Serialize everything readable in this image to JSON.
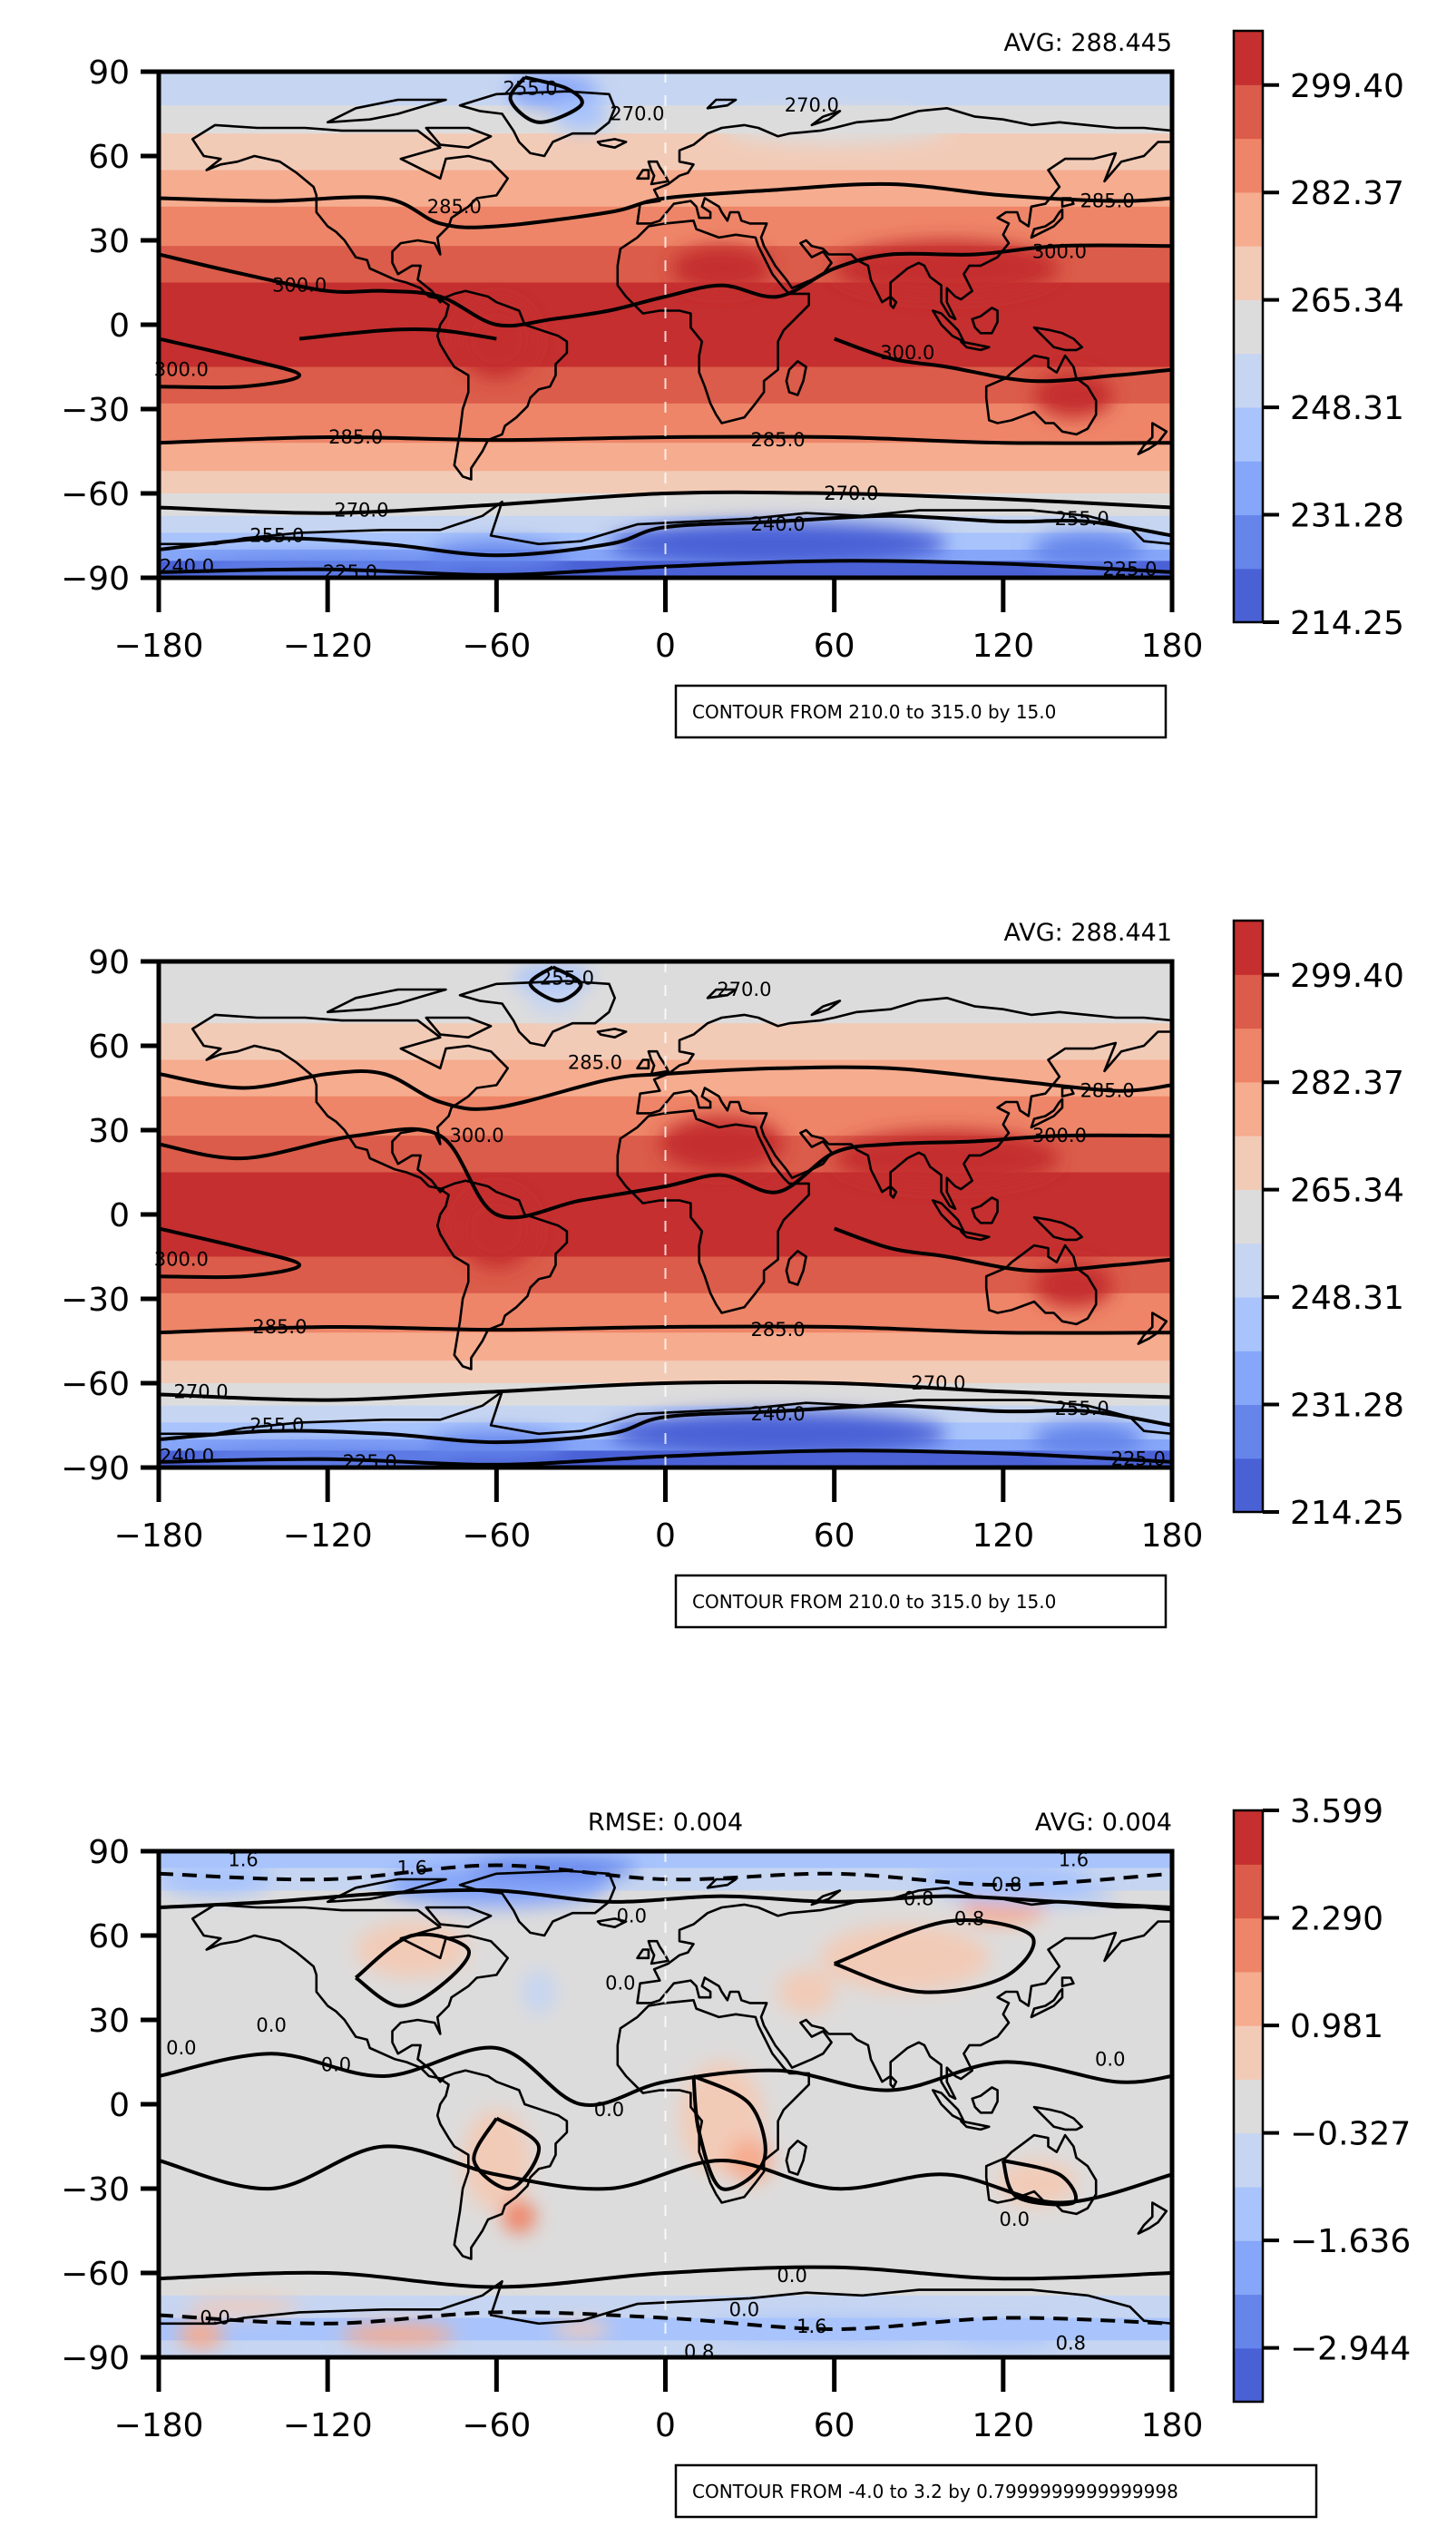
{
  "chart_data": [
    {
      "type": "heatmap",
      "subtype": "filled-contour map",
      "colormap": "coolwarm",
      "title_right": "AVG: 288.445",
      "x_ticks": [
        "−180",
        "−120",
        "−60",
        "0",
        "60",
        "120",
        "180"
      ],
      "y_ticks": [
        "90",
        "60",
        "30",
        "0",
        "−30",
        "−60",
        "−90"
      ],
      "xlim": [
        -180,
        180
      ],
      "ylim": [
        -90,
        90
      ],
      "colorbar": {
        "ticks": [
          "214.25",
          "231.28",
          "248.31",
          "265.34",
          "282.37",
          "299.40"
        ],
        "range": [
          214.25,
          308.0
        ],
        "levels": 11
      },
      "contour_note": "CONTOUR FROM 210.0 to 315.0 by 15.0",
      "contour_labels": [
        {
          "text": "255.0",
          "lon": -48,
          "lat": 84
        },
        {
          "text": "270.0",
          "lon": -10,
          "lat": 75
        },
        {
          "text": "270.0",
          "lon": 52,
          "lat": 78
        },
        {
          "text": "285.0",
          "lon": -75,
          "lat": 42
        },
        {
          "text": "285.0",
          "lon": 157,
          "lat": 44
        },
        {
          "text": "300.0",
          "lon": -130,
          "lat": 14
        },
        {
          "text": "300.0",
          "lon": 140,
          "lat": 26
        },
        {
          "text": "300.0",
          "lon": -172,
          "lat": -16
        },
        {
          "text": "300.0",
          "lon": 86,
          "lat": -10
        },
        {
          "text": "285.0",
          "lon": -110,
          "lat": -40
        },
        {
          "text": "285.0",
          "lon": 40,
          "lat": -41
        },
        {
          "text": "270.0",
          "lon": -108,
          "lat": -66
        },
        {
          "text": "270.0",
          "lon": 66,
          "lat": -60
        },
        {
          "text": "255.0",
          "lon": -138,
          "lat": -75
        },
        {
          "text": "255.0",
          "lon": 148,
          "lat": -69
        },
        {
          "text": "240.0",
          "lon": 40,
          "lat": -71
        },
        {
          "text": "240.0",
          "lon": -170,
          "lat": -86
        },
        {
          "text": "225.0",
          "lon": -112,
          "lat": -88
        },
        {
          "text": "225.0",
          "lon": 165,
          "lat": -87
        }
      ]
    },
    {
      "type": "heatmap",
      "subtype": "filled-contour map",
      "colormap": "coolwarm",
      "title_right": "AVG: 288.441",
      "x_ticks": [
        "−180",
        "−120",
        "−60",
        "0",
        "60",
        "120",
        "180"
      ],
      "y_ticks": [
        "90",
        "60",
        "30",
        "0",
        "−30",
        "−60",
        "−90"
      ],
      "xlim": [
        -180,
        180
      ],
      "ylim": [
        -90,
        90
      ],
      "colorbar": {
        "ticks": [
          "214.25",
          "231.28",
          "248.31",
          "265.34",
          "282.37",
          "299.40"
        ],
        "range": [
          214.25,
          308.0
        ],
        "levels": 11
      },
      "contour_note": "CONTOUR FROM 210.0 to 315.0 by 15.0",
      "contour_labels": [
        {
          "text": "255.0",
          "lon": -35,
          "lat": 84
        },
        {
          "text": "270.0",
          "lon": 28,
          "lat": 80
        },
        {
          "text": "285.0",
          "lon": -25,
          "lat": 54
        },
        {
          "text": "285.0",
          "lon": 157,
          "lat": 44
        },
        {
          "text": "300.0",
          "lon": -67,
          "lat": 28
        },
        {
          "text": "300.0",
          "lon": 140,
          "lat": 28
        },
        {
          "text": "300.0",
          "lon": -172,
          "lat": -16
        },
        {
          "text": "285.0",
          "lon": -137,
          "lat": -40
        },
        {
          "text": "285.0",
          "lon": 40,
          "lat": -41
        },
        {
          "text": "270.0",
          "lon": -165,
          "lat": -63
        },
        {
          "text": "270.0",
          "lon": 97,
          "lat": -60
        },
        {
          "text": "255.0",
          "lon": -138,
          "lat": -75
        },
        {
          "text": "255.0",
          "lon": 148,
          "lat": -69
        },
        {
          "text": "240.0",
          "lon": 40,
          "lat": -71
        },
        {
          "text": "240.0",
          "lon": -170,
          "lat": -86
        },
        {
          "text": "225.0",
          "lon": -105,
          "lat": -88
        },
        {
          "text": "225.0",
          "lon": 168,
          "lat": -87
        }
      ]
    },
    {
      "type": "heatmap",
      "subtype": "filled-contour map",
      "colormap": "coolwarm",
      "title_center": "RMSE: 0.004",
      "title_right": "AVG: 0.004",
      "x_ticks": [
        "−180",
        "−120",
        "−60",
        "0",
        "60",
        "120",
        "180"
      ],
      "y_ticks": [
        "90",
        "60",
        "30",
        "0",
        "−30",
        "−60",
        "−90"
      ],
      "xlim": [
        -180,
        180
      ],
      "ylim": [
        -90,
        90
      ],
      "colorbar": {
        "ticks": [
          "3.599",
          "2.290",
          "0.981",
          "−0.327",
          "−1.636",
          "−2.944"
        ],
        "range": [
          -3.6,
          3.599
        ],
        "levels": 11
      },
      "contour_note": "CONTOUR FROM -4.0 to 3.2 by 0.7999999999999998",
      "contour_labels": [
        {
          "text": "1.6",
          "lon": -150,
          "lat": 87
        },
        {
          "text": "1.6",
          "lon": -90,
          "lat": 84
        },
        {
          "text": "-0.8",
          "lon": 120,
          "lat": 78
        },
        {
          "text": "1.6",
          "lon": 145,
          "lat": 87
        },
        {
          "text": "0.8",
          "lon": 90,
          "lat": 73
        },
        {
          "text": "0.8",
          "lon": 108,
          "lat": 66
        },
        {
          "text": "0.0",
          "lon": -12,
          "lat": 67
        },
        {
          "text": "0.0",
          "lon": -16,
          "lat": 43
        },
        {
          "text": "0.0",
          "lon": -140,
          "lat": 28
        },
        {
          "text": "0.0",
          "lon": -172,
          "lat": 20
        },
        {
          "text": "0.0",
          "lon": -117,
          "lat": 14
        },
        {
          "text": "0.0",
          "lon": 158,
          "lat": 16
        },
        {
          "text": "0.0",
          "lon": -20,
          "lat": -2
        },
        {
          "text": "0.0",
          "lon": 124,
          "lat": -41
        },
        {
          "text": "0.0",
          "lon": 45,
          "lat": -61
        },
        {
          "text": "0.0",
          "lon": 28,
          "lat": -73
        },
        {
          "text": "1.6",
          "lon": 52,
          "lat": -79
        },
        {
          "text": "0.8",
          "lon": 12,
          "lat": -88
        },
        {
          "text": "0.8",
          "lon": 144,
          "lat": -85
        },
        {
          "text": "0.0",
          "lon": -160,
          "lat": -76
        }
      ]
    }
  ]
}
